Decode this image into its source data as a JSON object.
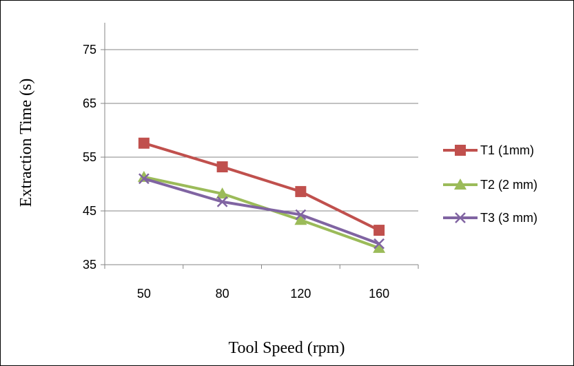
{
  "chart_data": {
    "type": "line",
    "categories": [
      "50",
      "80",
      "120",
      "160"
    ],
    "xlabel": "Tool Speed (rpm)",
    "ylabel": "Extraction Time (s)",
    "ylim": [
      35,
      80
    ],
    "yticks": [
      "35",
      "45",
      "55",
      "65",
      "75"
    ],
    "grid": true,
    "legend_position": "right",
    "series": [
      {
        "name": "T1 (1mm)",
        "values": [
          57.6,
          53.2,
          48.6,
          41.4
        ],
        "color": "#c0504d",
        "marker": "square"
      },
      {
        "name": "T2 (2 mm)",
        "values": [
          51.3,
          48.2,
          43.3,
          38.1
        ],
        "color": "#9bbb59",
        "marker": "triangle"
      },
      {
        "name": "T3 (3 mm)",
        "values": [
          51.0,
          46.7,
          44.3,
          38.9
        ],
        "color": "#8064a2",
        "marker": "x"
      }
    ]
  }
}
